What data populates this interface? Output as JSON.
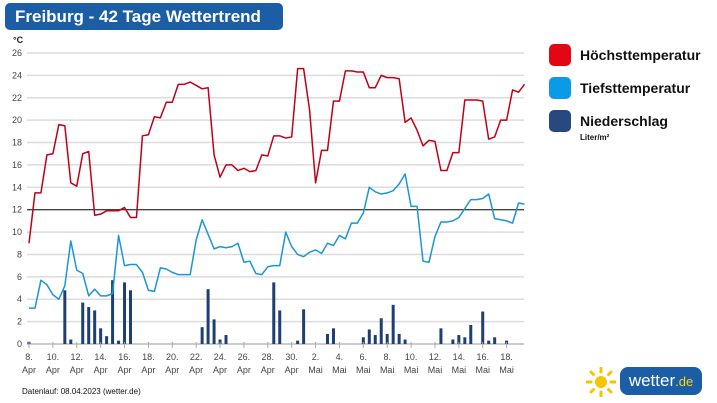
{
  "title": "Freiburg - 42 Tage Wettertrend",
  "footer": "Datenlauf: 08.04.2023 (wetter.de)",
  "logo": {
    "name": "wetter",
    "tld": ".de",
    "icon": "sun-icon"
  },
  "legend": [
    {
      "label": "Höchsttemperatur",
      "color": "#e30613"
    },
    {
      "label": "Tiefsttemperatur",
      "color": "#0a9ae6"
    },
    {
      "label": "Niederschlag",
      "color": "#1f3f73",
      "unit": "Liter/m²"
    }
  ],
  "chart_data": {
    "type": "line",
    "yunit": "°C",
    "ylim": [
      0,
      26
    ],
    "yticks": [
      0,
      2,
      4,
      6,
      8,
      10,
      12,
      14,
      16,
      18,
      20,
      22,
      24,
      26
    ],
    "reference_line": 12,
    "grid": true,
    "legend_position": "right",
    "xtick_labels": [
      [
        "8.",
        "Apr"
      ],
      [
        "10.",
        "Apr"
      ],
      [
        "12.",
        "Apr"
      ],
      [
        "14.",
        "Apr"
      ],
      [
        "16.",
        "Apr"
      ],
      [
        "18.",
        "Apr"
      ],
      [
        "20.",
        "Apr"
      ],
      [
        "22.",
        "Apr"
      ],
      [
        "24.",
        "Apr"
      ],
      [
        "26.",
        "Apr"
      ],
      [
        "28.",
        "Apr"
      ],
      [
        "30.",
        "Apr"
      ],
      [
        "2.",
        "Mai"
      ],
      [
        "4.",
        "Mai"
      ],
      [
        "6.",
        "Mai"
      ],
      [
        "8.",
        "Mai"
      ],
      [
        "10.",
        "Mai"
      ],
      [
        "12.",
        "Mai"
      ],
      [
        "14.",
        "Mai"
      ],
      [
        "16.",
        "Mai"
      ],
      [
        "18.",
        "Mai"
      ]
    ],
    "x": [
      "2023-04-08T00",
      "2023-04-08T12",
      "2023-04-09T00",
      "2023-04-09T12",
      "2023-04-10T00",
      "2023-04-10T12",
      "2023-04-11T00",
      "2023-04-11T12",
      "2023-04-12T00",
      "2023-04-12T12",
      "2023-04-13T00",
      "2023-04-13T12",
      "2023-04-14T00",
      "2023-04-14T12",
      "2023-04-15T00",
      "2023-04-15T12",
      "2023-04-16T00",
      "2023-04-16T12",
      "2023-04-17T00",
      "2023-04-17T12",
      "2023-04-18T00",
      "2023-04-18T12",
      "2023-04-19T00",
      "2023-04-19T12",
      "2023-04-20T00",
      "2023-04-20T12",
      "2023-04-21T00",
      "2023-04-21T12",
      "2023-04-22T00",
      "2023-04-22T12",
      "2023-04-23T00",
      "2023-04-23T12",
      "2023-04-24T00",
      "2023-04-24T12",
      "2023-04-25T00",
      "2023-04-25T12",
      "2023-04-26T00",
      "2023-04-26T12",
      "2023-04-27T00",
      "2023-04-27T12",
      "2023-04-28T00",
      "2023-04-28T12",
      "2023-04-29T00",
      "2023-04-29T12",
      "2023-04-30T00",
      "2023-04-30T12",
      "2023-05-01T00",
      "2023-05-01T12",
      "2023-05-02T00",
      "2023-05-02T12",
      "2023-05-03T00",
      "2023-05-03T12",
      "2023-05-04T00",
      "2023-05-04T12",
      "2023-05-05T00",
      "2023-05-05T12",
      "2023-05-06T00",
      "2023-05-06T12",
      "2023-05-07T00",
      "2023-05-07T12",
      "2023-05-08T00",
      "2023-05-08T12",
      "2023-05-09T00",
      "2023-05-09T12",
      "2023-05-10T00",
      "2023-05-10T12",
      "2023-05-11T00",
      "2023-05-11T12",
      "2023-05-12T00",
      "2023-05-12T12",
      "2023-05-13T00",
      "2023-05-13T12",
      "2023-05-14T00",
      "2023-05-14T12",
      "2023-05-15T00",
      "2023-05-15T12",
      "2023-05-16T00",
      "2023-05-16T12",
      "2023-05-17T00",
      "2023-05-17T12",
      "2023-05-18T00",
      "2023-05-18T12",
      "2023-05-19T00",
      "2023-05-19T12"
    ],
    "series": [
      {
        "name": "Höchsttemperatur",
        "type": "line",
        "color": "#c00018",
        "values": [
          9,
          13.5,
          13.5,
          16.9,
          17,
          19.6,
          19.5,
          14.4,
          14.1,
          17,
          17.2,
          11.5,
          11.6,
          11.9,
          11.9,
          11.9,
          12.2,
          11.3,
          11.3,
          18.6,
          18.7,
          20.3,
          20.2,
          21.6,
          21.6,
          23.2,
          23.2,
          23.4,
          23.1,
          22.8,
          22.9,
          16.9,
          14.9,
          16,
          16,
          15.5,
          15.7,
          15.4,
          15.5,
          16.9,
          16.8,
          18.6,
          18.6,
          18.4,
          18.5,
          24.6,
          24.6,
          20.9,
          14.4,
          17.3,
          17.3,
          21.7,
          21.7,
          24.4,
          24.4,
          24.3,
          24.3,
          22.9,
          22.9,
          24,
          23.8,
          23.8,
          23.7,
          19.8,
          20.2,
          19.1,
          17.7,
          18.2,
          18.1,
          15.5,
          15.5,
          17.1,
          17.1,
          21.8,
          21.8,
          21.8,
          21.7,
          18.3,
          18.5,
          20,
          20,
          22.7,
          22.5,
          23.2
        ]
      },
      {
        "name": "Tiefsttemperatur",
        "type": "line",
        "color": "#1a96d8",
        "values": [
          3.2,
          3.2,
          5.7,
          5.3,
          4.4,
          4.0,
          5.2,
          9.2,
          6.6,
          6.3,
          4.3,
          4.9,
          4.3,
          4.3,
          4.5,
          9.7,
          7.0,
          7.1,
          7.1,
          6.4,
          4.8,
          4.7,
          6.8,
          6.7,
          6.4,
          6.2,
          6.2,
          6.2,
          9.3,
          11.1,
          9.8,
          8.5,
          8.7,
          8.6,
          8.7,
          9.0,
          7.3,
          7.4,
          6.3,
          6.2,
          6.9,
          7.0,
          7.0,
          10.0,
          8.7,
          8.0,
          7.8,
          8.2,
          8.4,
          8.1,
          9.0,
          8.8,
          9.7,
          9.4,
          10.8,
          10.8,
          11.7,
          14.0,
          13.6,
          13.4,
          13.5,
          13.7,
          14.3,
          15.2,
          12.3,
          12.3,
          7.4,
          7.3,
          9.6,
          10.9,
          10.9,
          11.0,
          11.3,
          12.1,
          12.9,
          12.9,
          13.0,
          13.4,
          11.2,
          11.1,
          11.0,
          10.8,
          12.6,
          12.5
        ]
      },
      {
        "name": "Niederschlag",
        "type": "bar",
        "unit": "Liter/m²",
        "color": "#1f3f73",
        "values": [
          0.2,
          0,
          0,
          0,
          0,
          0,
          4.8,
          0.4,
          0,
          3.7,
          3.3,
          3.0,
          1.4,
          0.7,
          5.7,
          0.3,
          5.5,
          4.8,
          0,
          0,
          0,
          0,
          0,
          0,
          0,
          0,
          0,
          0,
          0,
          1.5,
          4.9,
          2.2,
          0.4,
          0.8,
          0,
          0,
          0,
          0,
          0,
          0,
          0,
          5.5,
          3.0,
          0,
          0,
          0.3,
          3.1,
          0,
          0,
          0,
          0.9,
          1.4,
          0,
          0,
          0,
          0,
          0.6,
          1.3,
          0.8,
          2.3,
          0.9,
          3.5,
          0.9,
          0.4,
          0,
          0,
          0,
          0,
          0,
          1.4,
          0,
          0.4,
          0.8,
          0.6,
          1.7,
          0,
          2.9,
          0.3,
          0.6,
          0,
          0.3,
          0,
          0,
          0
        ]
      }
    ]
  }
}
